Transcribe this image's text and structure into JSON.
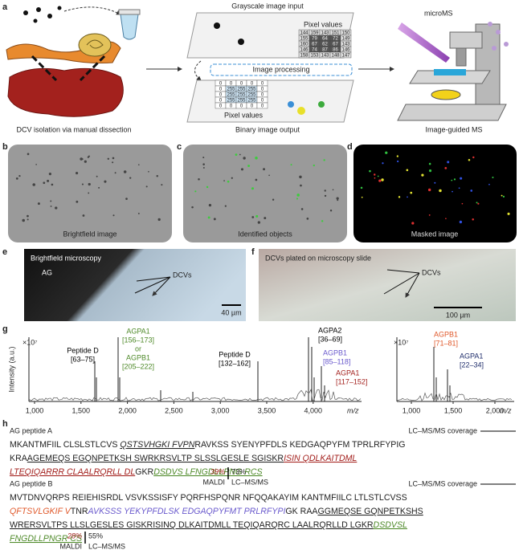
{
  "panel_a": {
    "label": "a",
    "input_title": "Grayscale image input",
    "input_pixels_label": "Pixel values",
    "input_pixels": [
      [
        144,
        159,
        143,
        151,
        150
      ],
      [
        155,
        79,
        64,
        72,
        149
      ],
      [
        160,
        67,
        62,
        67,
        143
      ],
      [
        146,
        74,
        87,
        86,
        146
      ],
      [
        158,
        153,
        143,
        148,
        147
      ]
    ],
    "processing": "Image processing",
    "output_pixels_label": "Pixel values",
    "output_pixels": [
      [
        0,
        0,
        0,
        0,
        0
      ],
      [
        0,
        255,
        255,
        255,
        0
      ],
      [
        0,
        255,
        255,
        255,
        0
      ],
      [
        0,
        255,
        255,
        255,
        0
      ],
      [
        0,
        0,
        0,
        0,
        0
      ]
    ],
    "output_title": "Binary image output",
    "left_caption": "DCV isolation via manual dissection",
    "instrument": "microMS",
    "right_caption": "Image-guided MS"
  },
  "panel_b": {
    "label": "b",
    "caption": "Brightfield image"
  },
  "panel_c": {
    "label": "c",
    "caption": "Identified objects"
  },
  "panel_d": {
    "label": "d",
    "caption": "Masked image"
  },
  "panel_e": {
    "label": "e",
    "title": "Brightfield microscopy",
    "tissue": "AG",
    "pointer": "DCVs",
    "scale": "40 µm"
  },
  "panel_f": {
    "label": "f",
    "title": "DCVs plated on microscopy slide",
    "pointer": "DCVs",
    "scale": "100 µm"
  },
  "panel_g": {
    "label": "g",
    "y_label": "Intensity (a.u.)",
    "multiplier": "×10⁷",
    "right_multiplier": "×10⁷",
    "x_label": "m/z",
    "right_x_label": "m/z",
    "xticks": [
      "1,000",
      "1,500",
      "2,000",
      "2,500",
      "3,000",
      "3,500",
      "4,000"
    ],
    "right_xticks": [
      "1,000",
      "1,500",
      "2,000"
    ],
    "annotations": [
      {
        "lines": [
          "Peptide D",
          "[63–75]"
        ],
        "color": "#000000"
      },
      {
        "lines": [
          "AGPA1",
          "[156–173]",
          "or",
          "AGPB1",
          "[205–222]"
        ],
        "color": "#4f8a2a"
      },
      {
        "lines": [
          "Peptide D",
          "[132–162]"
        ],
        "color": "#000000"
      },
      {
        "lines": [
          "AGPA2",
          "[36–69]"
        ],
        "color": "#000000"
      },
      {
        "lines": [
          "AGPB1",
          "[85–118]"
        ],
        "color": "#6a5acd"
      },
      {
        "lines": [
          "AGPA1",
          "[117–152]"
        ],
        "color": "#a3201d"
      },
      {
        "lines": [
          "AGPB1",
          "[71–81]"
        ],
        "color": "#e0582a"
      },
      {
        "lines": [
          "AGPA1",
          "[22–34]"
        ],
        "color": "#1f2d6b"
      }
    ]
  },
  "panel_h": {
    "label": "h",
    "peptides": [
      {
        "title": "AG peptide A",
        "coverage_label": "LC–MS/MS coverage",
        "maldi_pct": "39%",
        "lcms_pct": "73%",
        "maldi": "MALDI",
        "lcms": "LC–MS/MS",
        "lines": [
          [
            {
              "text": "MKANTMFIIL CLSLSTLCVS "
            },
            {
              "text": "QSTSVHGKI FVPN",
              "italic": true,
              "underline": true
            },
            {
              "text": "RAVKSS SYENYPFDLS KEDGAQPYFM TPRLRFYPIG"
            }
          ],
          [
            {
              "text": "KRA"
            },
            {
              "text": "AGEMEQS EGQNPETKSH SWRKRSVLTP SLSSLGESLE SGISKR",
              "underline": true
            },
            {
              "text": "ISIN QDLKAITDML",
              "italic": true,
              "underline": true,
              "color": "#a3201d"
            }
          ],
          [
            {
              "text": "LTEQIQARRR CLAALRQRLL DL",
              "italic": true,
              "underline": true,
              "color": "#a3201d"
            },
            {
              "text": "GKR"
            },
            {
              "text": "DSDVS LFNGDLLPNG RCS",
              "italic": true,
              "underline": true,
              "color": "#4f8a2a"
            }
          ]
        ]
      },
      {
        "title": "AG peptide B",
        "coverage_label": "LC–MS/MS coverage",
        "maldi_pct": "28%",
        "lcms_pct": "55%",
        "maldi": "MALDI",
        "lcms": "LC–MS/MS",
        "lines": [
          [
            {
              "text": "MVTDNVQRPS REIEHISRDL VSVKSSISFY PQRFHSPQNR NFQQAKAYIM KANTMFIILC LTLSTLCVSS"
            }
          ],
          [
            {
              "text": "QFTSVLGKIF V",
              "italic": true,
              "color": "#e0582a"
            },
            {
              "text": "TNR"
            },
            {
              "text": "AVKSSS YEKYPFDLSK EDGAQPYFMT PRLRFYPI",
              "italic": true,
              "color": "#6a5acd"
            },
            {
              "text": "GK RAA"
            },
            {
              "text": "GGMEQSE GQNPETKSHS",
              "underline": true
            }
          ],
          [
            {
              "text": "WRERSVLTPS LLSLGESLES GISKR",
              "underline": true
            },
            {
              "text": "ISINQ DLKAITDMLL TEQIQARQRC LAALRQRLLD LGKR",
              "underline": true
            },
            {
              "text": "DSDVSL",
              "italic": true,
              "underline": true,
              "color": "#4f8a2a"
            }
          ],
          [
            {
              "text": "FNGDLLPNGR CS",
              "italic": true,
              "underline": true,
              "color": "#4f8a2a"
            }
          ]
        ]
      }
    ]
  }
}
